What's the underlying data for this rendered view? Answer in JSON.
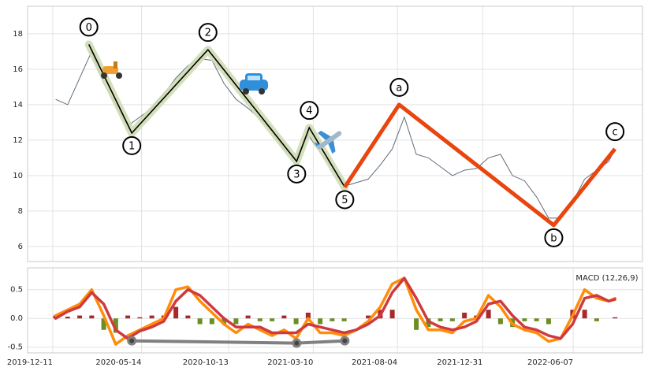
{
  "chart_data": [
    {
      "type": "line",
      "x": [
        "2019-12-16",
        "2020-01-06",
        "2020-01-27",
        "2020-02-17",
        "2020-03-09",
        "2020-03-30",
        "2020-04-20",
        "2020-05-11",
        "2020-06-01",
        "2020-06-22",
        "2020-07-13",
        "2020-08-03",
        "2020-08-24",
        "2020-09-14",
        "2020-10-05",
        "2020-10-26",
        "2020-11-16",
        "2020-12-07",
        "2020-12-28",
        "2021-01-18",
        "2021-02-08",
        "2021-03-01",
        "2021-03-22",
        "2021-04-12",
        "2021-05-03",
        "2021-05-24",
        "2021-06-14",
        "2021-07-05",
        "2021-07-26",
        "2021-08-16",
        "2021-09-06",
        "2021-09-27",
        "2021-10-18",
        "2021-11-08",
        "2021-11-29",
        "2021-12-20",
        "2022-01-10",
        "2022-01-31",
        "2022-02-21",
        "2022-03-14",
        "2022-04-04",
        "2022-04-25",
        "2022-05-16",
        "2022-06-06",
        "2022-06-27",
        "2022-07-18",
        "2022-08-08",
        "2022-08-19"
      ],
      "values": [
        14.3,
        14.0,
        15.5,
        17.0,
        15.2,
        14.0,
        12.8,
        13.3,
        13.8,
        14.6,
        15.5,
        16.2,
        16.6,
        16.5,
        15.2,
        14.3,
        13.8,
        13.2,
        12.5,
        11.5,
        11.0,
        12.3,
        11.3,
        10.5,
        9.4,
        9.6,
        9.8,
        10.6,
        11.5,
        13.3,
        11.2,
        11.0,
        10.5,
        10.0,
        10.3,
        10.4,
        11.0,
        11.2,
        10.0,
        9.7,
        8.8,
        7.6,
        7.6,
        8.5,
        9.8,
        10.3,
        10.8,
        11.5
      ],
      "color": "#5f6b78",
      "xlim": [
        "2019-10-28",
        "2022-10-06"
      ],
      "xticks": [
        "2019-12-11",
        "2020-05-14",
        "2020-10-13",
        "2021-03-10",
        "2021-08-04",
        "2021-12-31",
        "2022-06-07"
      ],
      "ylim": [
        5.15,
        19.55
      ],
      "yticks": [
        6,
        8,
        10,
        12,
        14,
        16,
        18
      ],
      "grid": true,
      "waves": [
        {
          "labels": [
            "0",
            "1",
            "2",
            "3",
            "4",
            "5"
          ],
          "x": [
            "2020-02-12",
            "2020-04-27",
            "2020-09-07",
            "2021-02-09",
            "2021-03-03",
            "2021-05-04"
          ],
          "values": [
            17.4,
            12.4,
            17.1,
            10.8,
            12.7,
            9.35
          ],
          "color": "#000000",
          "highlight": "#cfdbb5"
        },
        {
          "labels": [
            null,
            "a",
            "b",
            "c"
          ],
          "x": [
            "2021-05-04",
            "2021-08-07",
            "2022-05-04",
            "2022-08-19"
          ],
          "values": [
            9.35,
            14.0,
            7.2,
            11.5
          ],
          "color": "#e8450f"
        }
      ]
    },
    {
      "type": "macd",
      "label": "MACD (12,26,9)",
      "x": [
        "2019-12-16",
        "2020-01-06",
        "2020-01-27",
        "2020-02-17",
        "2020-03-09",
        "2020-03-30",
        "2020-04-20",
        "2020-05-11",
        "2020-06-01",
        "2020-06-22",
        "2020-07-13",
        "2020-08-03",
        "2020-08-24",
        "2020-09-14",
        "2020-10-05",
        "2020-10-26",
        "2020-11-16",
        "2020-12-07",
        "2020-12-28",
        "2021-01-18",
        "2021-02-08",
        "2021-03-01",
        "2021-03-22",
        "2021-04-12",
        "2021-05-03",
        "2021-05-24",
        "2021-06-14",
        "2021-07-05",
        "2021-07-26",
        "2021-08-16",
        "2021-09-06",
        "2021-09-27",
        "2021-10-18",
        "2021-11-08",
        "2021-11-29",
        "2021-12-20",
        "2022-01-10",
        "2022-01-31",
        "2022-02-21",
        "2022-03-14",
        "2022-04-04",
        "2022-04-25",
        "2022-05-16",
        "2022-06-06",
        "2022-06-27",
        "2022-07-18",
        "2022-08-08",
        "2022-08-19"
      ],
      "series": [
        {
          "color": "#ff8c0a",
          "values": [
            0.05,
            0.15,
            0.25,
            0.5,
            0.05,
            -0.45,
            -0.3,
            -0.2,
            -0.1,
            0.0,
            0.5,
            0.55,
            0.3,
            0.1,
            -0.1,
            -0.25,
            -0.1,
            -0.2,
            -0.3,
            -0.2,
            -0.35,
            0.0,
            -0.25,
            -0.25,
            -0.3,
            -0.2,
            -0.05,
            0.2,
            0.6,
            0.7,
            0.15,
            -0.2,
            -0.2,
            -0.25,
            -0.05,
            0.0,
            0.4,
            0.2,
            -0.1,
            -0.2,
            -0.25,
            -0.4,
            -0.35,
            0.05,
            0.5,
            0.35,
            0.3,
            0.35
          ]
        },
        {
          "color": "#cf3a3e",
          "values": [
            0.0,
            0.12,
            0.2,
            0.45,
            0.25,
            -0.2,
            -0.35,
            -0.22,
            -0.15,
            -0.05,
            0.3,
            0.5,
            0.4,
            0.2,
            0.0,
            -0.15,
            -0.15,
            -0.15,
            -0.25,
            -0.25,
            -0.25,
            -0.1,
            -0.15,
            -0.2,
            -0.25,
            -0.2,
            -0.1,
            0.05,
            0.45,
            0.7,
            0.35,
            -0.05,
            -0.15,
            -0.2,
            -0.15,
            -0.05,
            0.25,
            0.3,
            0.05,
            -0.15,
            -0.2,
            -0.3,
            -0.35,
            -0.1,
            0.35,
            0.4,
            0.3,
            0.33
          ]
        }
      ],
      "histogram": {
        "values": [
          0.05,
          0.03,
          0.05,
          0.05,
          -0.2,
          -0.25,
          0.05,
          0.02,
          0.05,
          0.05,
          0.2,
          0.05,
          -0.1,
          -0.1,
          -0.1,
          -0.1,
          0.05,
          -0.05,
          -0.05,
          0.05,
          -0.1,
          0.1,
          -0.1,
          -0.05,
          -0.05,
          0.0,
          0.05,
          0.15,
          0.15,
          0.0,
          -0.2,
          -0.15,
          -0.05,
          -0.05,
          0.1,
          0.05,
          0.15,
          -0.1,
          -0.15,
          -0.05,
          -0.05,
          -0.1,
          0.0,
          0.15,
          0.15,
          -0.05,
          0.0,
          0.02
        ],
        "positive_color": "#a8282b",
        "negative_color": "#6b8e23"
      },
      "divergence": {
        "x": [
          "2020-04-27",
          "2021-02-09",
          "2021-05-04"
        ],
        "values": [
          -0.39,
          -0.43,
          -0.39
        ],
        "color": "#808080"
      },
      "xlim": [
        "2019-10-28",
        "2022-10-06"
      ],
      "xticks": [
        "2019-12-11",
        "2020-05-14",
        "2020-10-13",
        "2021-03-10",
        "2021-08-04",
        "2021-12-31",
        "2022-06-07"
      ],
      "ylim": [
        -0.6,
        0.88
      ],
      "yticks": [
        0.5,
        {
          "value": 0,
          "label": "0.0"
        },
        -0.5
      ],
      "grid": true
    }
  ]
}
